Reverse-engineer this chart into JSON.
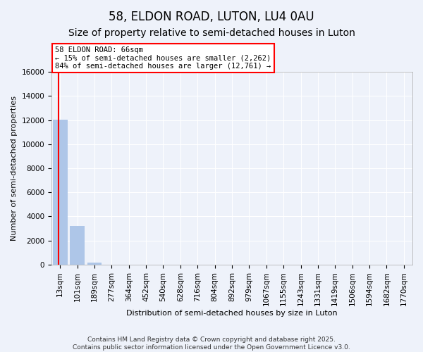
{
  "title": "58, ELDON ROAD, LUTON, LU4 0AU",
  "subtitle": "Size of property relative to semi-detached houses in Luton",
  "xlabel": "Distribution of semi-detached houses by size in Luton",
  "ylabel": "Number of semi-detached properties",
  "annotation_title": "58 ELDON ROAD: 66sqm",
  "annotation_line2": "← 15% of semi-detached houses are smaller (2,262)",
  "annotation_line3": "84% of semi-detached houses are larger (12,761) →",
  "footer_line1": "Contains HM Land Registry data © Crown copyright and database right 2025.",
  "footer_line2": "Contains public sector information licensed under the Open Government Licence v3.0.",
  "categories": [
    "13sqm",
    "101sqm",
    "189sqm",
    "277sqm",
    "364sqm",
    "452sqm",
    "540sqm",
    "628sqm",
    "716sqm",
    "804sqm",
    "892sqm",
    "979sqm",
    "1067sqm",
    "1155sqm",
    "1243sqm",
    "1331sqm",
    "1419sqm",
    "1506sqm",
    "1594sqm",
    "1682sqm",
    "1770sqm"
  ],
  "values": [
    12050,
    3200,
    150,
    0,
    0,
    0,
    0,
    0,
    0,
    0,
    0,
    0,
    0,
    0,
    0,
    0,
    0,
    0,
    0,
    0,
    0
  ],
  "bar_color": "#aec6e8",
  "vline_color": "red",
  "ylim": [
    0,
    16000
  ],
  "yticks": [
    0,
    2000,
    4000,
    6000,
    8000,
    10000,
    12000,
    14000,
    16000
  ],
  "background_color": "#eef2fa",
  "grid_color": "white",
  "title_fontsize": 12,
  "subtitle_fontsize": 10,
  "ylabel_fontsize": 8,
  "xlabel_fontsize": 8,
  "tick_fontsize": 7.5,
  "footer_fontsize": 6.5,
  "annotation_fontsize": 7.5
}
